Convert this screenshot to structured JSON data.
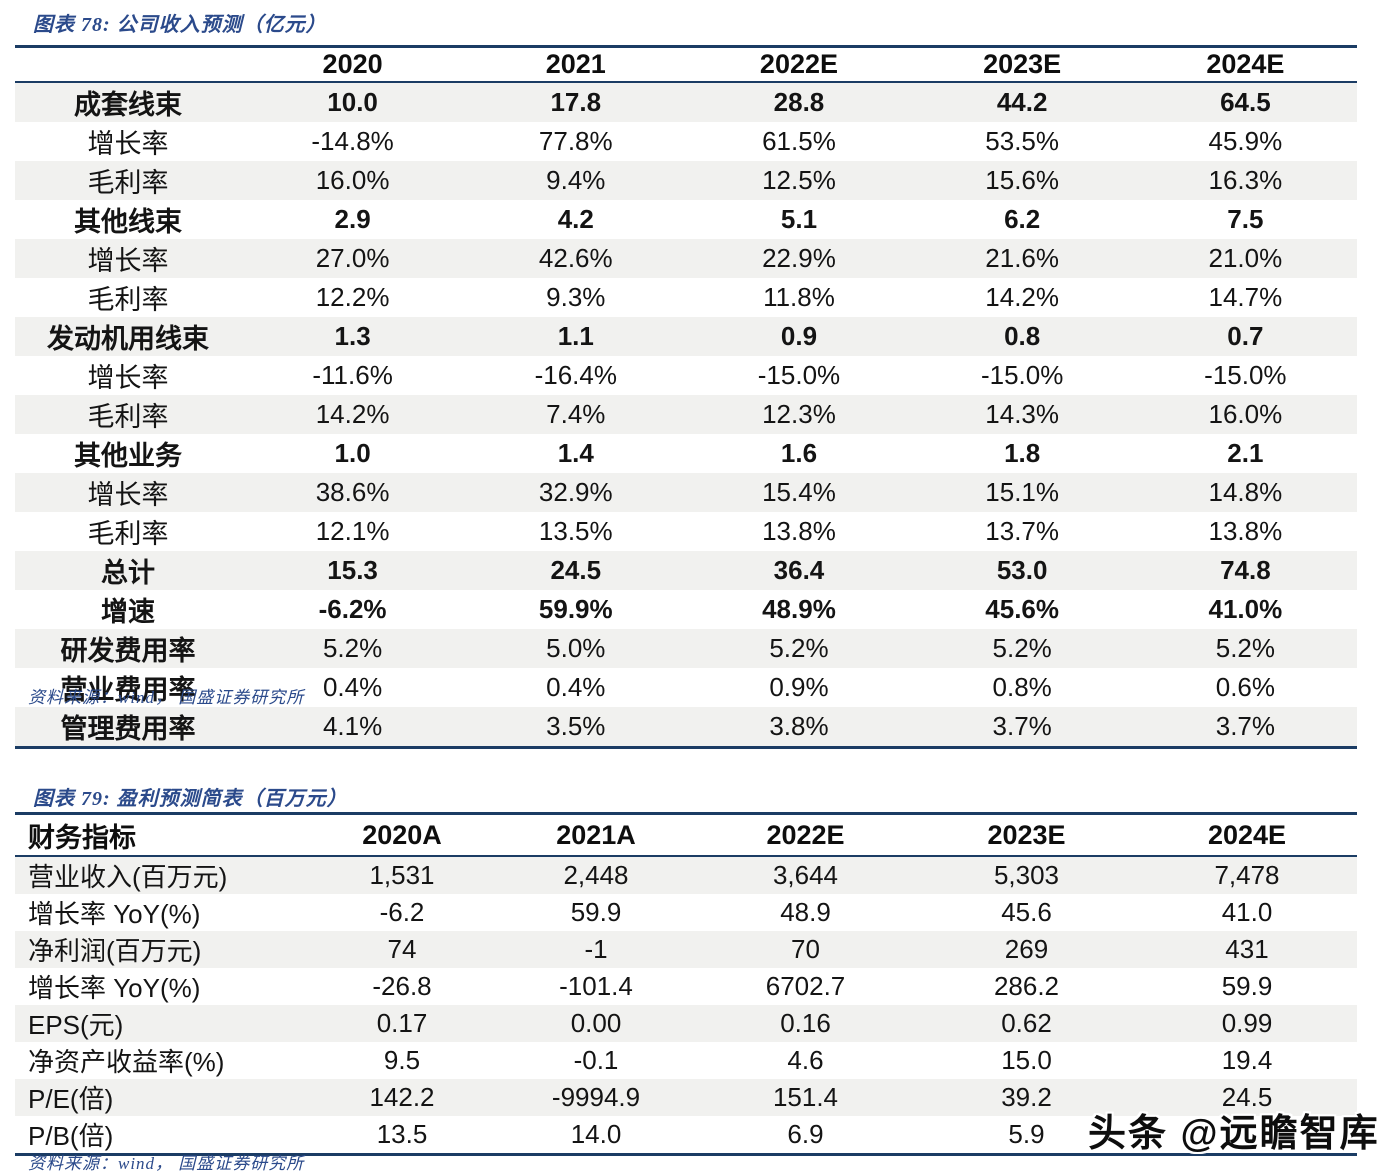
{
  "colors": {
    "rule_navy": "#1B3C64",
    "title_blue": "#2B4A8B",
    "row_shade": "#F1F1EF"
  },
  "watermark": {
    "text": "头条 @远瞻智库"
  },
  "figure78": {
    "title": "图表 78:  公司收入预测（亿元）",
    "source": "资料来源：wind， 国盛证券研究所",
    "header": {
      "label": "",
      "columns": [
        "2020",
        "2021",
        "2022E",
        "2023E",
        "2024E"
      ]
    },
    "rows": [
      {
        "label": "成套线束",
        "label_bold": true,
        "values_bold": true,
        "values": [
          "10.0",
          "17.8",
          "28.8",
          "44.2",
          "64.5"
        ]
      },
      {
        "label": "增长率",
        "label_bold": false,
        "values_bold": false,
        "values": [
          "-14.8%",
          "77.8%",
          "61.5%",
          "53.5%",
          "45.9%"
        ]
      },
      {
        "label": "毛利率",
        "label_bold": false,
        "values_bold": false,
        "values": [
          "16.0%",
          "9.4%",
          "12.5%",
          "15.6%",
          "16.3%"
        ]
      },
      {
        "label": "其他线束",
        "label_bold": true,
        "values_bold": true,
        "values": [
          "2.9",
          "4.2",
          "5.1",
          "6.2",
          "7.5"
        ]
      },
      {
        "label": "增长率",
        "label_bold": false,
        "values_bold": false,
        "values": [
          "27.0%",
          "42.6%",
          "22.9%",
          "21.6%",
          "21.0%"
        ]
      },
      {
        "label": "毛利率",
        "label_bold": false,
        "values_bold": false,
        "values": [
          "12.2%",
          "9.3%",
          "11.8%",
          "14.2%",
          "14.7%"
        ]
      },
      {
        "label": "发动机用线束",
        "label_bold": true,
        "values_bold": true,
        "values": [
          "1.3",
          "1.1",
          "0.9",
          "0.8",
          "0.7"
        ]
      },
      {
        "label": "增长率",
        "label_bold": false,
        "values_bold": false,
        "values": [
          "-11.6%",
          "-16.4%",
          "-15.0%",
          "-15.0%",
          "-15.0%"
        ]
      },
      {
        "label": "毛利率",
        "label_bold": false,
        "values_bold": false,
        "values": [
          "14.2%",
          "7.4%",
          "12.3%",
          "14.3%",
          "16.0%"
        ]
      },
      {
        "label": "其他业务",
        "label_bold": true,
        "values_bold": true,
        "values": [
          "1.0",
          "1.4",
          "1.6",
          "1.8",
          "2.1"
        ]
      },
      {
        "label": "增长率",
        "label_bold": false,
        "values_bold": false,
        "values": [
          "38.6%",
          "32.9%",
          "15.4%",
          "15.1%",
          "14.8%"
        ]
      },
      {
        "label": "毛利率",
        "label_bold": false,
        "values_bold": false,
        "values": [
          "12.1%",
          "13.5%",
          "13.8%",
          "13.7%",
          "13.8%"
        ]
      },
      {
        "label": "总计",
        "label_bold": true,
        "values_bold": true,
        "values": [
          "15.3",
          "24.5",
          "36.4",
          "53.0",
          "74.8"
        ]
      },
      {
        "label": "增速",
        "label_bold": true,
        "values_bold": true,
        "values": [
          "-6.2%",
          "59.9%",
          "48.9%",
          "45.6%",
          "41.0%"
        ]
      },
      {
        "label": "研发费用率",
        "label_bold": true,
        "values_bold": false,
        "values": [
          "5.2%",
          "5.0%",
          "5.2%",
          "5.2%",
          "5.2%"
        ]
      },
      {
        "label": "营业费用率",
        "label_bold": true,
        "values_bold": false,
        "values": [
          "0.4%",
          "0.4%",
          "0.9%",
          "0.8%",
          "0.6%"
        ]
      },
      {
        "label": "管理费用率",
        "label_bold": true,
        "values_bold": false,
        "values": [
          "4.1%",
          "3.5%",
          "3.8%",
          "3.7%",
          "3.7%"
        ]
      }
    ]
  },
  "figure79": {
    "title": "图表 79:  盈利预测简表（百万元）",
    "source": "资料来源：wind， 国盛证券研究所",
    "header": {
      "label": "财务指标",
      "columns": [
        "2020A",
        "2021A",
        "2022E",
        "2023E",
        "2024E"
      ]
    },
    "rows": [
      {
        "label": "营业收入(百万元)",
        "label_bold": false,
        "values_bold": false,
        "values": [
          "1,531",
          "2,448",
          "3,644",
          "5,303",
          "7,478"
        ]
      },
      {
        "label": "增长率 YoY(%)",
        "label_bold": false,
        "values_bold": false,
        "values": [
          "-6.2",
          "59.9",
          "48.9",
          "45.6",
          "41.0"
        ]
      },
      {
        "label": "净利润(百万元)",
        "label_bold": false,
        "values_bold": false,
        "values": [
          "74",
          "-1",
          "70",
          "269",
          "431"
        ]
      },
      {
        "label": "增长率 YoY(%)",
        "label_bold": false,
        "values_bold": false,
        "values": [
          "-26.8",
          "-101.4",
          "6702.7",
          "286.2",
          "59.9"
        ]
      },
      {
        "label": "EPS(元)",
        "label_bold": false,
        "values_bold": false,
        "values": [
          "0.17",
          "0.00",
          "0.16",
          "0.62",
          "0.99"
        ]
      },
      {
        "label": "净资产收益率(%)",
        "label_bold": false,
        "values_bold": false,
        "values": [
          "9.5",
          "-0.1",
          "4.6",
          "15.0",
          "19.4"
        ]
      },
      {
        "label": "P/E(倍)",
        "label_bold": false,
        "values_bold": false,
        "values": [
          "142.2",
          "-9994.9",
          "151.4",
          "39.2",
          "24.5"
        ]
      },
      {
        "label": "P/B(倍)",
        "label_bold": false,
        "values_bold": false,
        "values": [
          "13.5",
          "14.0",
          "6.9",
          "5.9",
          ""
        ]
      }
    ]
  }
}
